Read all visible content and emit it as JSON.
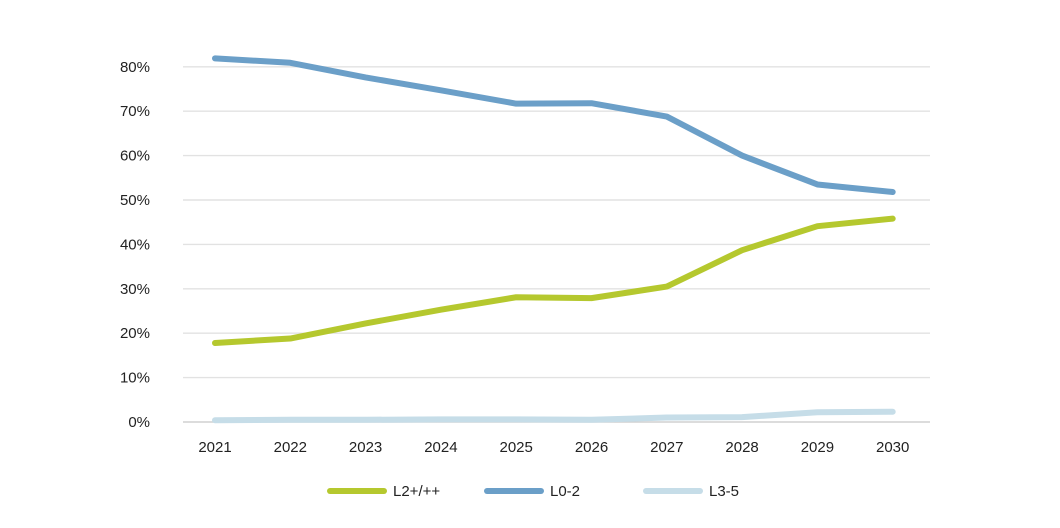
{
  "chart_data": {
    "type": "line",
    "title": "",
    "xlabel": "",
    "ylabel": "",
    "categories": [
      "2021",
      "2022",
      "2023",
      "2024",
      "2025",
      "2026",
      "2027",
      "2028",
      "2029",
      "2030"
    ],
    "ylim": [
      0,
      90
    ],
    "yticks": [
      0,
      10,
      20,
      30,
      40,
      50,
      60,
      70,
      80
    ],
    "ytick_labels": [
      "0%",
      "10%",
      "20%",
      "30%",
      "40%",
      "50%",
      "60%",
      "70%",
      "80%"
    ],
    "grid": "horizontal",
    "legend_position": "bottom",
    "series": [
      {
        "name": "L2+/++",
        "color": "#b5c82e",
        "values": [
          17.8,
          18.8,
          22.2,
          25.3,
          28.1,
          27.9,
          30.5,
          38.7,
          44.1,
          45.8
        ]
      },
      {
        "name": "L0-2",
        "color": "#6b9fc8",
        "values": [
          81.9,
          80.9,
          77.6,
          74.7,
          71.7,
          71.8,
          68.8,
          60.0,
          53.5,
          51.8
        ]
      },
      {
        "name": "L3-5",
        "color": "#c6dde8",
        "values": [
          0.4,
          0.5,
          0.5,
          0.6,
          0.6,
          0.5,
          1.0,
          1.1,
          2.2,
          2.3
        ]
      }
    ]
  }
}
